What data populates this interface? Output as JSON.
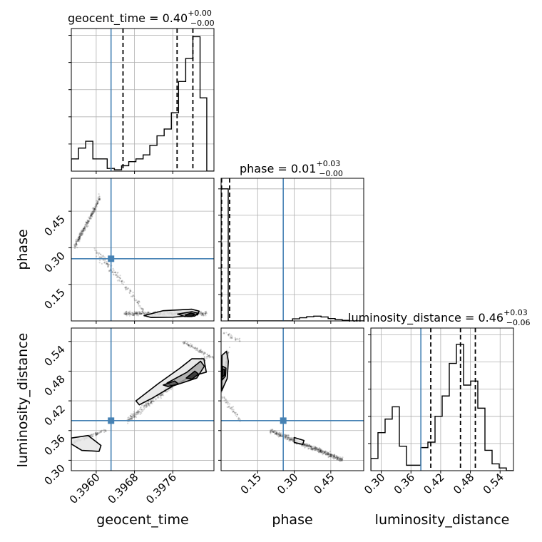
{
  "chart_data": {
    "type": "corner",
    "parameters": [
      "geocent_time",
      "phase",
      "luminosity_distance"
    ],
    "truth": {
      "geocent_time": 0.39631,
      "phase": 0.255,
      "luminosity_distance": 0.38
    },
    "titles": [
      {
        "param": "geocent_time",
        "text": "geocent_time = 0.40",
        "sup": "+0.00",
        "sub": "−0.00"
      },
      {
        "param": "phase",
        "text": "phase = 0.01",
        "sup": "+0.03",
        "sub": "−0.00"
      },
      {
        "param": "luminosity_distance",
        "text": "luminosity_distance = 0.46",
        "sup": "+0.03",
        "sub": "−0.06"
      }
    ],
    "axes": {
      "geocent_time": {
        "range": [
          0.39548,
          0.39846
        ],
        "ticks": [
          0.396,
          0.3968,
          0.3976
        ],
        "tick_labels": [
          "0.3960",
          "0.3968",
          "0.3976"
        ],
        "label": "geocent_time"
      },
      "phase": {
        "range": [
          0.0,
          0.585
        ],
        "ticks": [
          0.15,
          0.3,
          0.45
        ],
        "tick_labels": [
          "0.15",
          "0.30",
          "0.45"
        ],
        "label": "phase"
      },
      "luminosity_distance": {
        "range": [
          0.279,
          0.567
        ],
        "ticks": [
          0.3,
          0.36,
          0.42,
          0.48,
          0.54
        ],
        "tick_labels": [
          "0.30",
          "0.36",
          "0.42",
          "0.48",
          "0.54"
        ],
        "label": "luminosity_distance"
      }
    },
    "histograms": {
      "geocent_time": {
        "edges": [
          0.39548,
          0.39563,
          0.39578,
          0.39593,
          0.39608,
          0.39623,
          0.39638,
          0.39653,
          0.39668,
          0.39683,
          0.39698,
          0.39712,
          0.39727,
          0.39742,
          0.39757,
          0.39772,
          0.39787,
          0.39802,
          0.39817,
          0.39831,
          0.39846
        ],
        "counts": [
          0.09,
          0.17,
          0.22,
          0.09,
          0.09,
          0.02,
          0.01,
          0.04,
          0.07,
          0.09,
          0.12,
          0.19,
          0.26,
          0.31,
          0.43,
          0.66,
          0.83,
          0.99,
          0.54,
          0.0
        ],
        "ylim": [
          0,
          1.05
        ],
        "quantiles": [
          0.39656,
          0.39769,
          0.39802
        ]
      },
      "phase": {
        "edges": [
          0.0,
          0.0293,
          0.0585,
          0.0878,
          0.117,
          0.146,
          0.176,
          0.205,
          0.234,
          0.263,
          0.293,
          0.322,
          0.351,
          0.38,
          0.41,
          0.439,
          0.468,
          0.497,
          0.527,
          0.556,
          0.585
        ],
        "counts": [
          1.0,
          0.0,
          0.0,
          0.0,
          0.0,
          0.0,
          0.0,
          0.0,
          0.0,
          0.0,
          0.016,
          0.024,
          0.032,
          0.036,
          0.03,
          0.018,
          0.01,
          0.004,
          0.0,
          0.0
        ],
        "ylim": [
          0,
          1.08
        ],
        "quantiles": [
          0.002,
          0.035
        ]
      },
      "luminosity_distance": {
        "edges": [
          0.279,
          0.2934,
          0.3078,
          0.3222,
          0.3366,
          0.351,
          0.3654,
          0.3798,
          0.3942,
          0.4086,
          0.423,
          0.4374,
          0.4518,
          0.4662,
          0.4806,
          0.495,
          0.5094,
          0.5238,
          0.5382,
          0.5526,
          0.567
        ],
        "counts": [
          0.09,
          0.28,
          0.38,
          0.47,
          0.18,
          0.04,
          0.04,
          0.17,
          0.21,
          0.4,
          0.55,
          0.79,
          0.93,
          0.63,
          0.66,
          0.46,
          0.15,
          0.05,
          0.02,
          0.0
        ],
        "ylim": [
          0,
          1.05
        ],
        "quantiles": [
          0.4,
          0.46,
          0.49
        ]
      }
    },
    "contours": {
      "geocent_time|phase": [
        {
          "level": "outer",
          "shade": "#e6e6e6",
          "points": [
            [
              0.397,
              0.022
            ],
            [
              0.3974,
              0.042
            ],
            [
              0.398,
              0.048
            ],
            [
              0.39815,
              0.04
            ],
            [
              0.39812,
              0.025
            ],
            [
              0.3976,
              0.015
            ],
            [
              0.39715,
              0.014
            ]
          ]
        },
        {
          "level": "mid",
          "shade": "#9a9a9a",
          "points": [
            [
              0.3977,
              0.028
            ],
            [
              0.398,
              0.038
            ],
            [
              0.39812,
              0.032
            ],
            [
              0.39806,
              0.02
            ],
            [
              0.39785,
              0.018
            ]
          ]
        },
        {
          "level": "inner",
          "shade": "#111111",
          "points": [
            [
              0.39786,
              0.024
            ],
            [
              0.39798,
              0.032
            ],
            [
              0.39806,
              0.028
            ],
            [
              0.398,
              0.018
            ],
            [
              0.3979,
              0.018
            ]
          ]
        }
      ],
      "geocent_time|luminosity_distance": [
        {
          "level": "outer",
          "shade": "#e6e6e6",
          "points": [
            [
              0.39683,
              0.42
            ],
            [
              0.3973,
              0.455
            ],
            [
              0.39775,
              0.486
            ],
            [
              0.398,
              0.505
            ],
            [
              0.39825,
              0.505
            ],
            [
              0.3983,
              0.478
            ],
            [
              0.398,
              0.47
            ],
            [
              0.3976,
              0.45
            ],
            [
              0.39718,
              0.426
            ],
            [
              0.3969,
              0.412
            ]
          ]
        },
        {
          "level": "mid",
          "shade": "#a8a8a8",
          "points": [
            [
              0.39748,
              0.456
            ],
            [
              0.3979,
              0.478
            ],
            [
              0.39818,
              0.5
            ],
            [
              0.39826,
              0.49
            ],
            [
              0.3981,
              0.466
            ],
            [
              0.3976,
              0.45
            ]
          ]
        },
        {
          "level": "inner",
          "shade": "#2a2a2a",
          "points": [
            [
              0.39788,
              0.466
            ],
            [
              0.39806,
              0.48
            ],
            [
              0.39814,
              0.474
            ],
            [
              0.398,
              0.464
            ]
          ]
        },
        {
          "level": "inner2",
          "shade": "#555555",
          "points": [
            [
              0.3974,
              0.452
            ],
            [
              0.39764,
              0.46
            ],
            [
              0.39772,
              0.454
            ],
            [
              0.3975,
              0.449
            ]
          ]
        },
        {
          "level": "outer",
          "shade": "#e6e6e6",
          "points": [
            [
              0.39548,
              0.345
            ],
            [
              0.39583,
              0.35
            ],
            [
              0.3961,
              0.33
            ],
            [
              0.39606,
              0.318
            ],
            [
              0.3957,
              0.32
            ],
            [
              0.39548,
              0.333
            ]
          ]
        }
      ],
      "phase|luminosity_distance": [
        {
          "level": "outer",
          "shade": "#d8d8d8",
          "points": [
            [
              0.002,
              0.44
            ],
            [
              0.025,
              0.465
            ],
            [
              0.03,
              0.5
            ],
            [
              0.022,
              0.52
            ],
            [
              0.004,
              0.512
            ]
          ]
        },
        {
          "level": "mid",
          "shade": "#9a9a9a",
          "points": [
            [
              0.004,
              0.462
            ],
            [
              0.018,
              0.47
            ],
            [
              0.02,
              0.486
            ],
            [
              0.006,
              0.49
            ]
          ]
        },
        {
          "level": "inner",
          "shade": "#1e1e1e",
          "points": [
            [
              0.005,
              0.468
            ],
            [
              0.014,
              0.472
            ],
            [
              0.014,
              0.484
            ],
            [
              0.006,
              0.484
            ]
          ]
        },
        {
          "level": "outer",
          "shade": "#f0f0f0",
          "points": [
            [
              0.3,
              0.346
            ],
            [
              0.34,
              0.34
            ],
            [
              0.335,
              0.332
            ],
            [
              0.3,
              0.336
            ]
          ]
        }
      ]
    },
    "scatter_clouds": {
      "geocent_time|phase": [
        {
          "from": [
            0.39553,
            0.3
          ],
          "to": [
            0.39597,
            0.46
          ],
          "n": 220,
          "spread": 0.012
        },
        {
          "from": [
            0.39597,
            0.46
          ],
          "to": [
            0.39608,
            0.51
          ],
          "n": 45,
          "spread": 0.01
        },
        {
          "from": [
            0.39598,
            0.29
          ],
          "to": [
            0.3965,
            0.17
          ],
          "n": 90,
          "spread": 0.018
        },
        {
          "from": [
            0.3965,
            0.17
          ],
          "to": [
            0.397,
            0.04
          ],
          "n": 60,
          "spread": 0.012
        },
        {
          "from": [
            0.3966,
            0.03
          ],
          "to": [
            0.3983,
            0.03
          ],
          "n": 420,
          "spread": 0.01
        }
      ],
      "geocent_time|luminosity_distance": [
        {
          "from": [
            0.39665,
            0.38
          ],
          "to": [
            0.39835,
            0.51
          ],
          "n": 380,
          "spread": 0.014
        },
        {
          "from": [
            0.3978,
            0.54
          ],
          "to": [
            0.39846,
            0.505
          ],
          "n": 90,
          "spread": 0.008
        },
        {
          "from": [
            0.39548,
            0.335
          ],
          "to": [
            0.3962,
            0.36
          ],
          "n": 110,
          "spread": 0.008
        }
      ],
      "phase|luminosity_distance": [
        {
          "from": [
            0.2,
            0.36
          ],
          "to": [
            0.5,
            0.3
          ],
          "n": 520,
          "spread": 0.01
        },
        {
          "from": [
            0.002,
            0.44
          ],
          "to": [
            0.03,
            0.52
          ],
          "n": 160,
          "spread": 0.012
        },
        {
          "from": [
            0.002,
            0.43
          ],
          "to": [
            0.08,
            0.38
          ],
          "n": 50,
          "spread": 0.012
        },
        {
          "from": [
            0.0,
            0.56
          ],
          "to": [
            0.08,
            0.54
          ],
          "n": 30,
          "spread": 0.01
        }
      ]
    }
  }
}
